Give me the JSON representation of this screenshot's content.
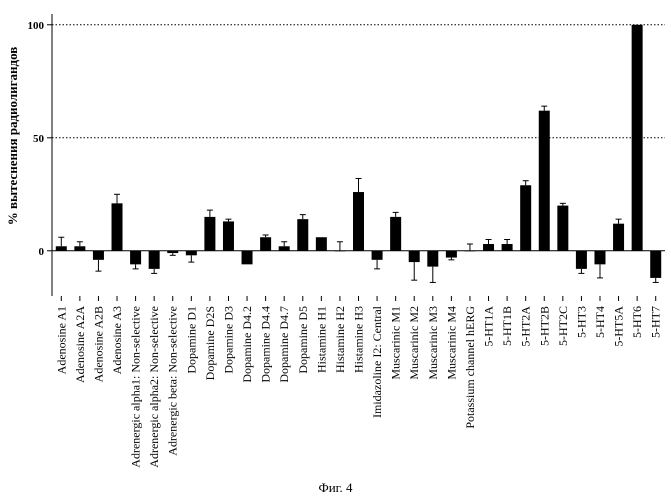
{
  "chart_data": {
    "type": "bar",
    "ylabel": "% вытеснения радиолигандов",
    "ylim": [
      -20,
      103
    ],
    "yticks": [
      0,
      50,
      100
    ],
    "reference_lines": [
      50,
      100
    ],
    "grid": false,
    "categories": [
      "Adenosine A1",
      "Adenosine A2A",
      "Adenosine A2B",
      "Adenosine A3",
      "Adrenergic alpha1: Non-selective",
      "Adrenergic alpha2: Non-selective",
      "Adrenergic beta: Non-selective",
      "Dopamine D1",
      "Dopamine D2S",
      "Dopamine D3",
      "Dopamine D4.2",
      "Dopamine D4.4",
      "Dopamine D4.7",
      "Dopamine D5",
      "Histamine H1",
      "Histamine H2",
      "Histamine H3",
      "Imidazoline I2: Central",
      "Muscarinic M1",
      "Muscarinic M2",
      "Muscarinic M3",
      "Muscarinic M4",
      "Potassium channel hERG",
      "5-HT1A",
      "5-HT1B",
      "5-HT2A",
      "5-HT2B",
      "5-HT2C",
      "5-HT3",
      "5-HT4",
      "5-HT5A",
      "5-HT6",
      "5-HT7"
    ],
    "values": [
      2,
      2,
      -4,
      21,
      -6,
      -8,
      -1,
      -2,
      15,
      13,
      -6,
      6,
      2,
      14,
      6,
      0,
      26,
      -4,
      15,
      -5,
      -7,
      -3,
      0,
      3,
      3,
      29,
      62,
      20,
      -8,
      -6,
      12,
      100,
      -12
    ],
    "errors": [
      4,
      2,
      5,
      4,
      2,
      2,
      1,
      3,
      3,
      1,
      0,
      1,
      2,
      2,
      0,
      4,
      6,
      4,
      2,
      8,
      7,
      1,
      3,
      2,
      2,
      2,
      2,
      1,
      2,
      6,
      2,
      0,
      2
    ]
  },
  "caption": "Фиг. 4"
}
